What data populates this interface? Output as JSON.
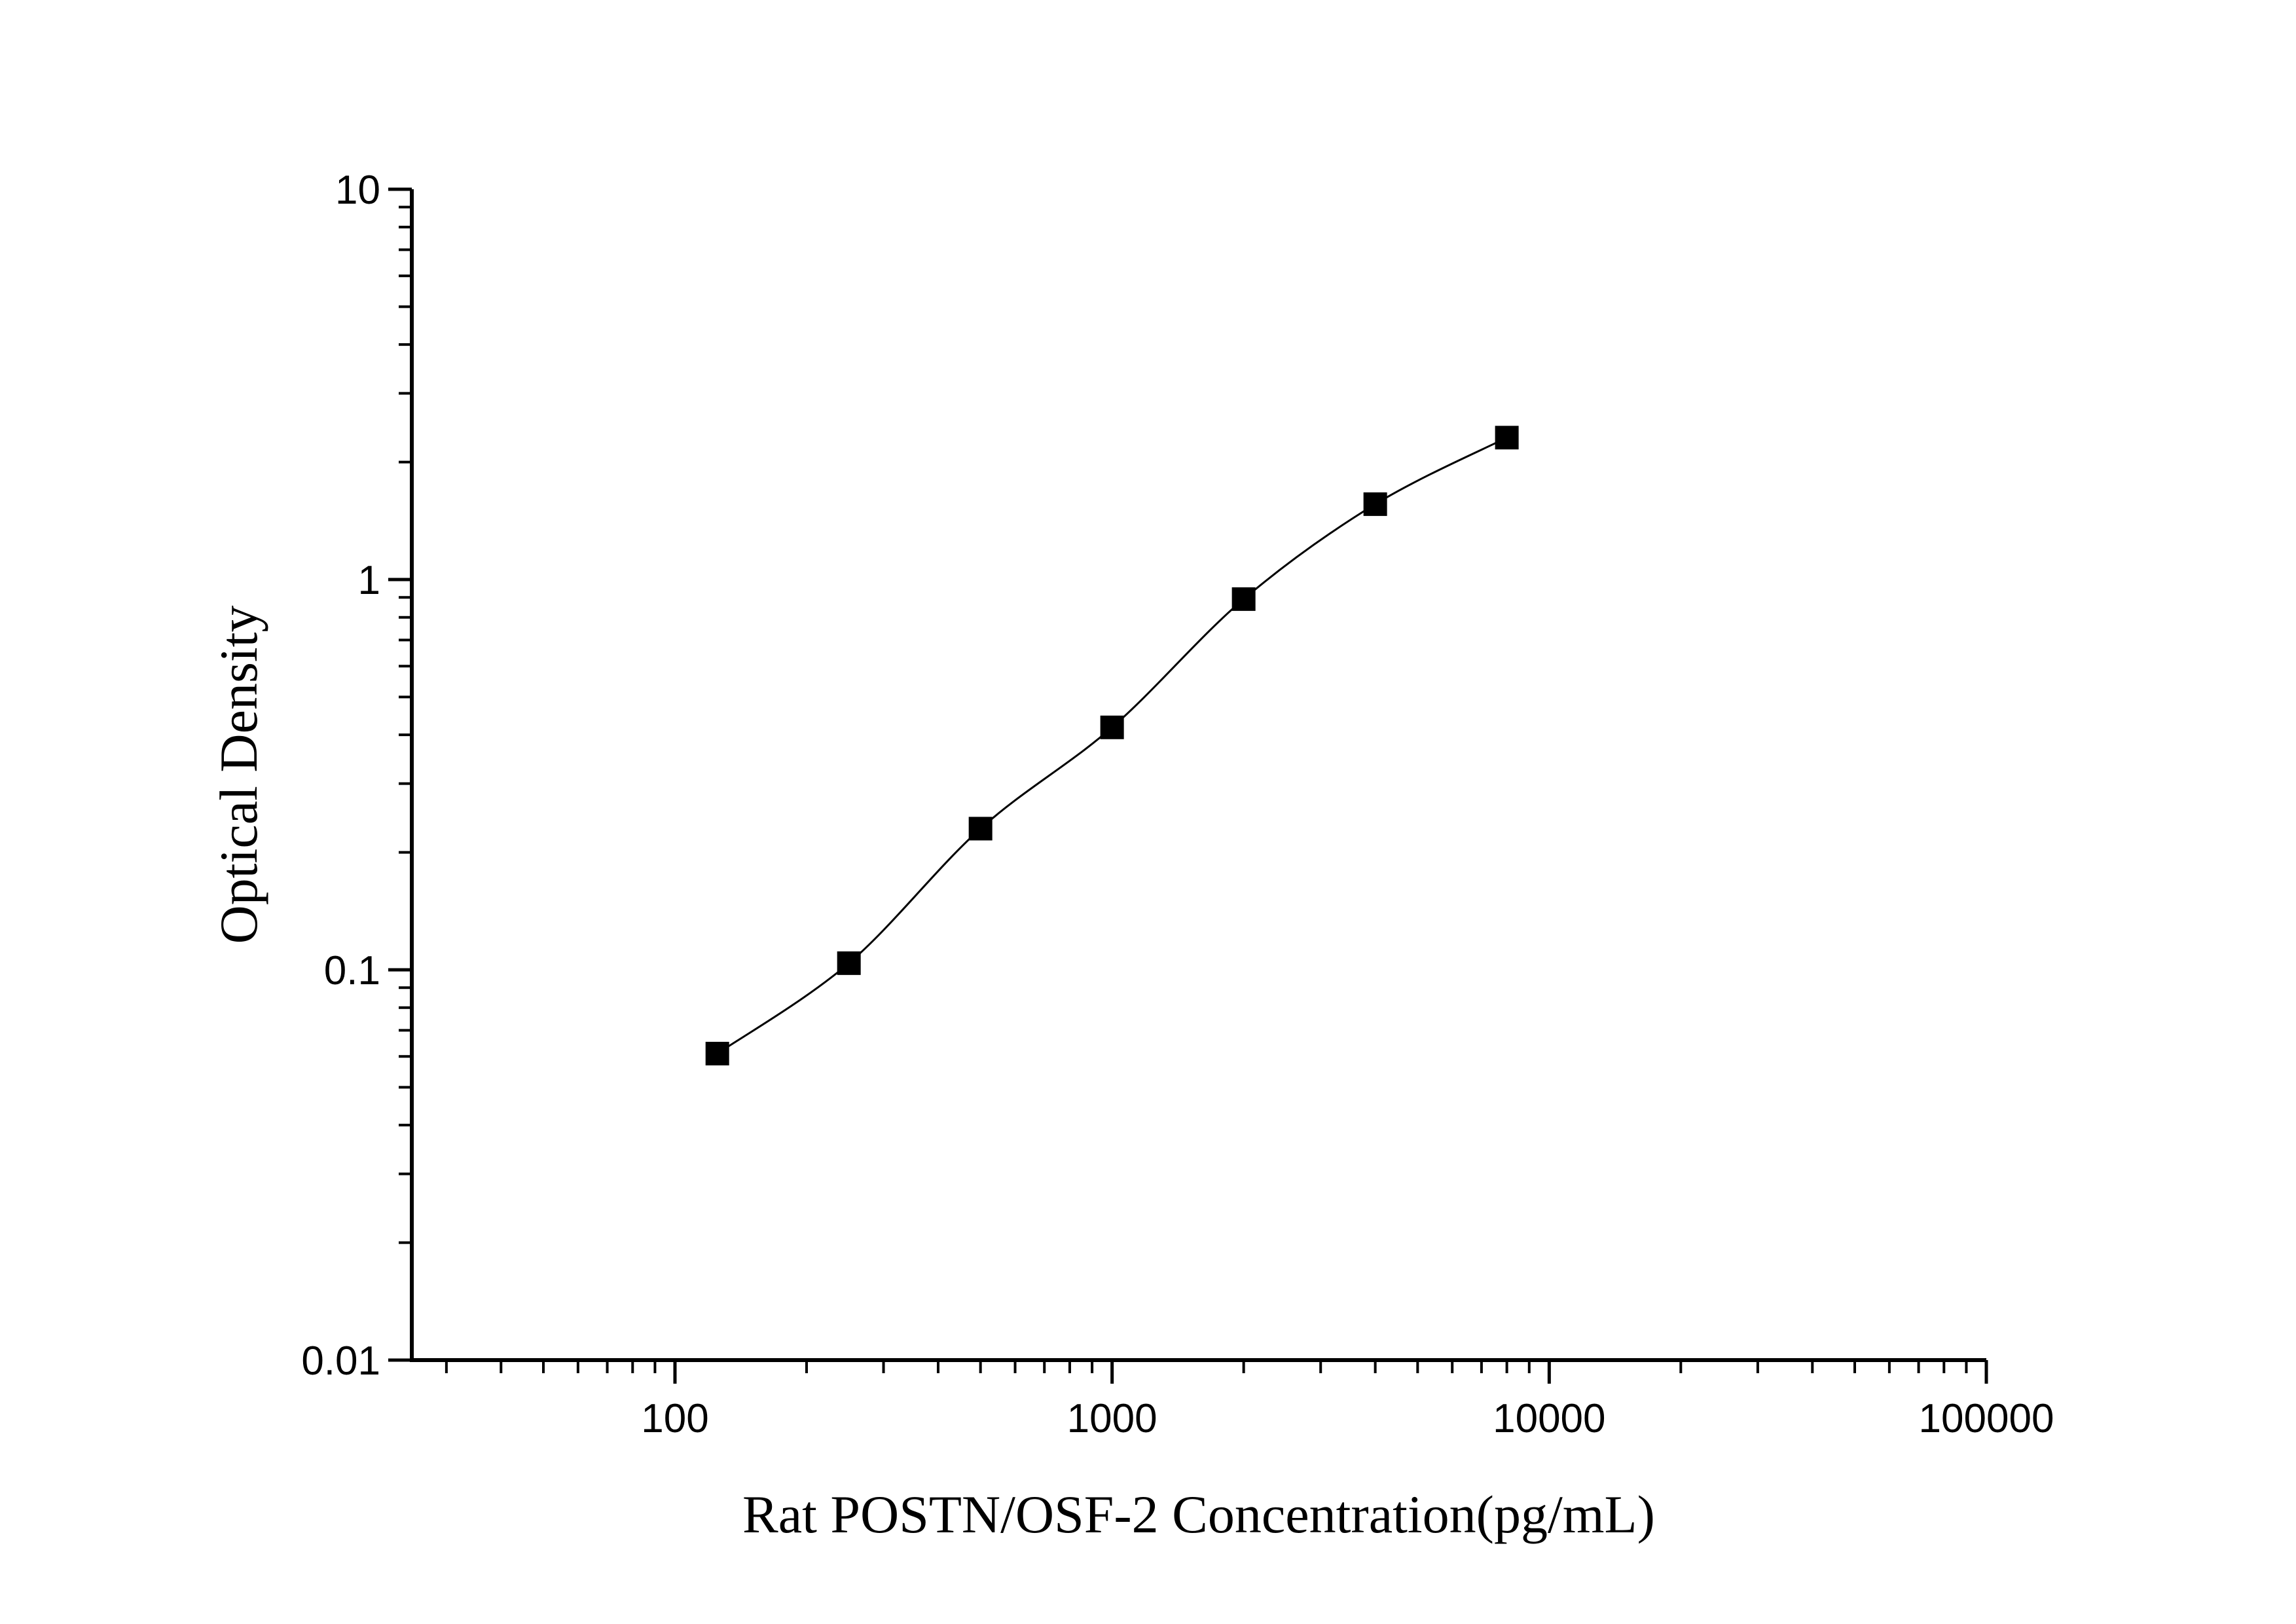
{
  "chart_data": {
    "type": "scatter",
    "title": "",
    "xlabel": "Rat POSTN/OSF-2 Concentration(pg/mL)",
    "ylabel": "Optical Density",
    "x_scale": "log",
    "y_scale": "log",
    "xlim": [
      25,
      100000
    ],
    "ylim": [
      0.01,
      10
    ],
    "x_ticks": [
      100,
      1000,
      10000,
      100000
    ],
    "x_tick_labels": [
      "100",
      "1000",
      "10000",
      "100000"
    ],
    "y_ticks": [
      0.01,
      0.1,
      1,
      10
    ],
    "y_tick_labels": [
      "0.01",
      "0.1",
      "1",
      "10"
    ],
    "grid": false,
    "marker": "square",
    "fit_curve": true,
    "color": "#000000",
    "series": [
      {
        "x": [
          125,
          250,
          500,
          1000,
          2000,
          4000,
          8000
        ],
        "y": [
          0.061,
          0.104,
          0.23,
          0.418,
          0.891,
          1.56,
          2.31
        ]
      }
    ]
  }
}
